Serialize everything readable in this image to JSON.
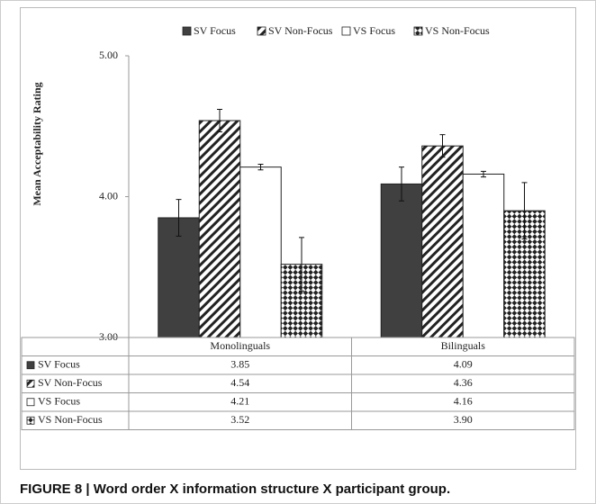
{
  "chart_data": {
    "type": "bar",
    "caption": "FIGURE 8 | Word order X information structure X participant group.",
    "y_label": "Mean Acceptability Rating",
    "categories": [
      "Monolinguals",
      "Bilinguals"
    ],
    "series": [
      {
        "name": "SV Focus",
        "pattern": "solid",
        "color": "#404040",
        "values": [
          3.85,
          4.09
        ],
        "value_labels": [
          "3.85",
          "4.09"
        ],
        "errors": [
          0.13,
          0.12
        ]
      },
      {
        "name": "SV Non-Focus",
        "pattern": "hatch",
        "color": "#222222",
        "values": [
          4.54,
          4.36
        ],
        "value_labels": [
          "4.54",
          "4.36"
        ],
        "errors": [
          0.08,
          0.08
        ]
      },
      {
        "name": "VS Focus",
        "pattern": "none",
        "color": "#ffffff",
        "values": [
          4.21,
          4.16
        ],
        "value_labels": [
          "4.21",
          "4.16"
        ],
        "errors": [
          0.02,
          0.02
        ]
      },
      {
        "name": "VS Non-Focus",
        "pattern": "check",
        "color": "#222222",
        "values": [
          3.52,
          3.9
        ],
        "value_labels": [
          "3.52",
          "3.90"
        ],
        "errors": [
          0.19,
          0.2
        ]
      }
    ],
    "ylim": [
      3,
      5
    ],
    "yticks": [
      {
        "value": 3,
        "label": "3.00"
      },
      {
        "value": 4,
        "label": "4.00"
      },
      {
        "value": 5,
        "label": "5.00"
      }
    ],
    "grid": false,
    "legend": "top"
  }
}
